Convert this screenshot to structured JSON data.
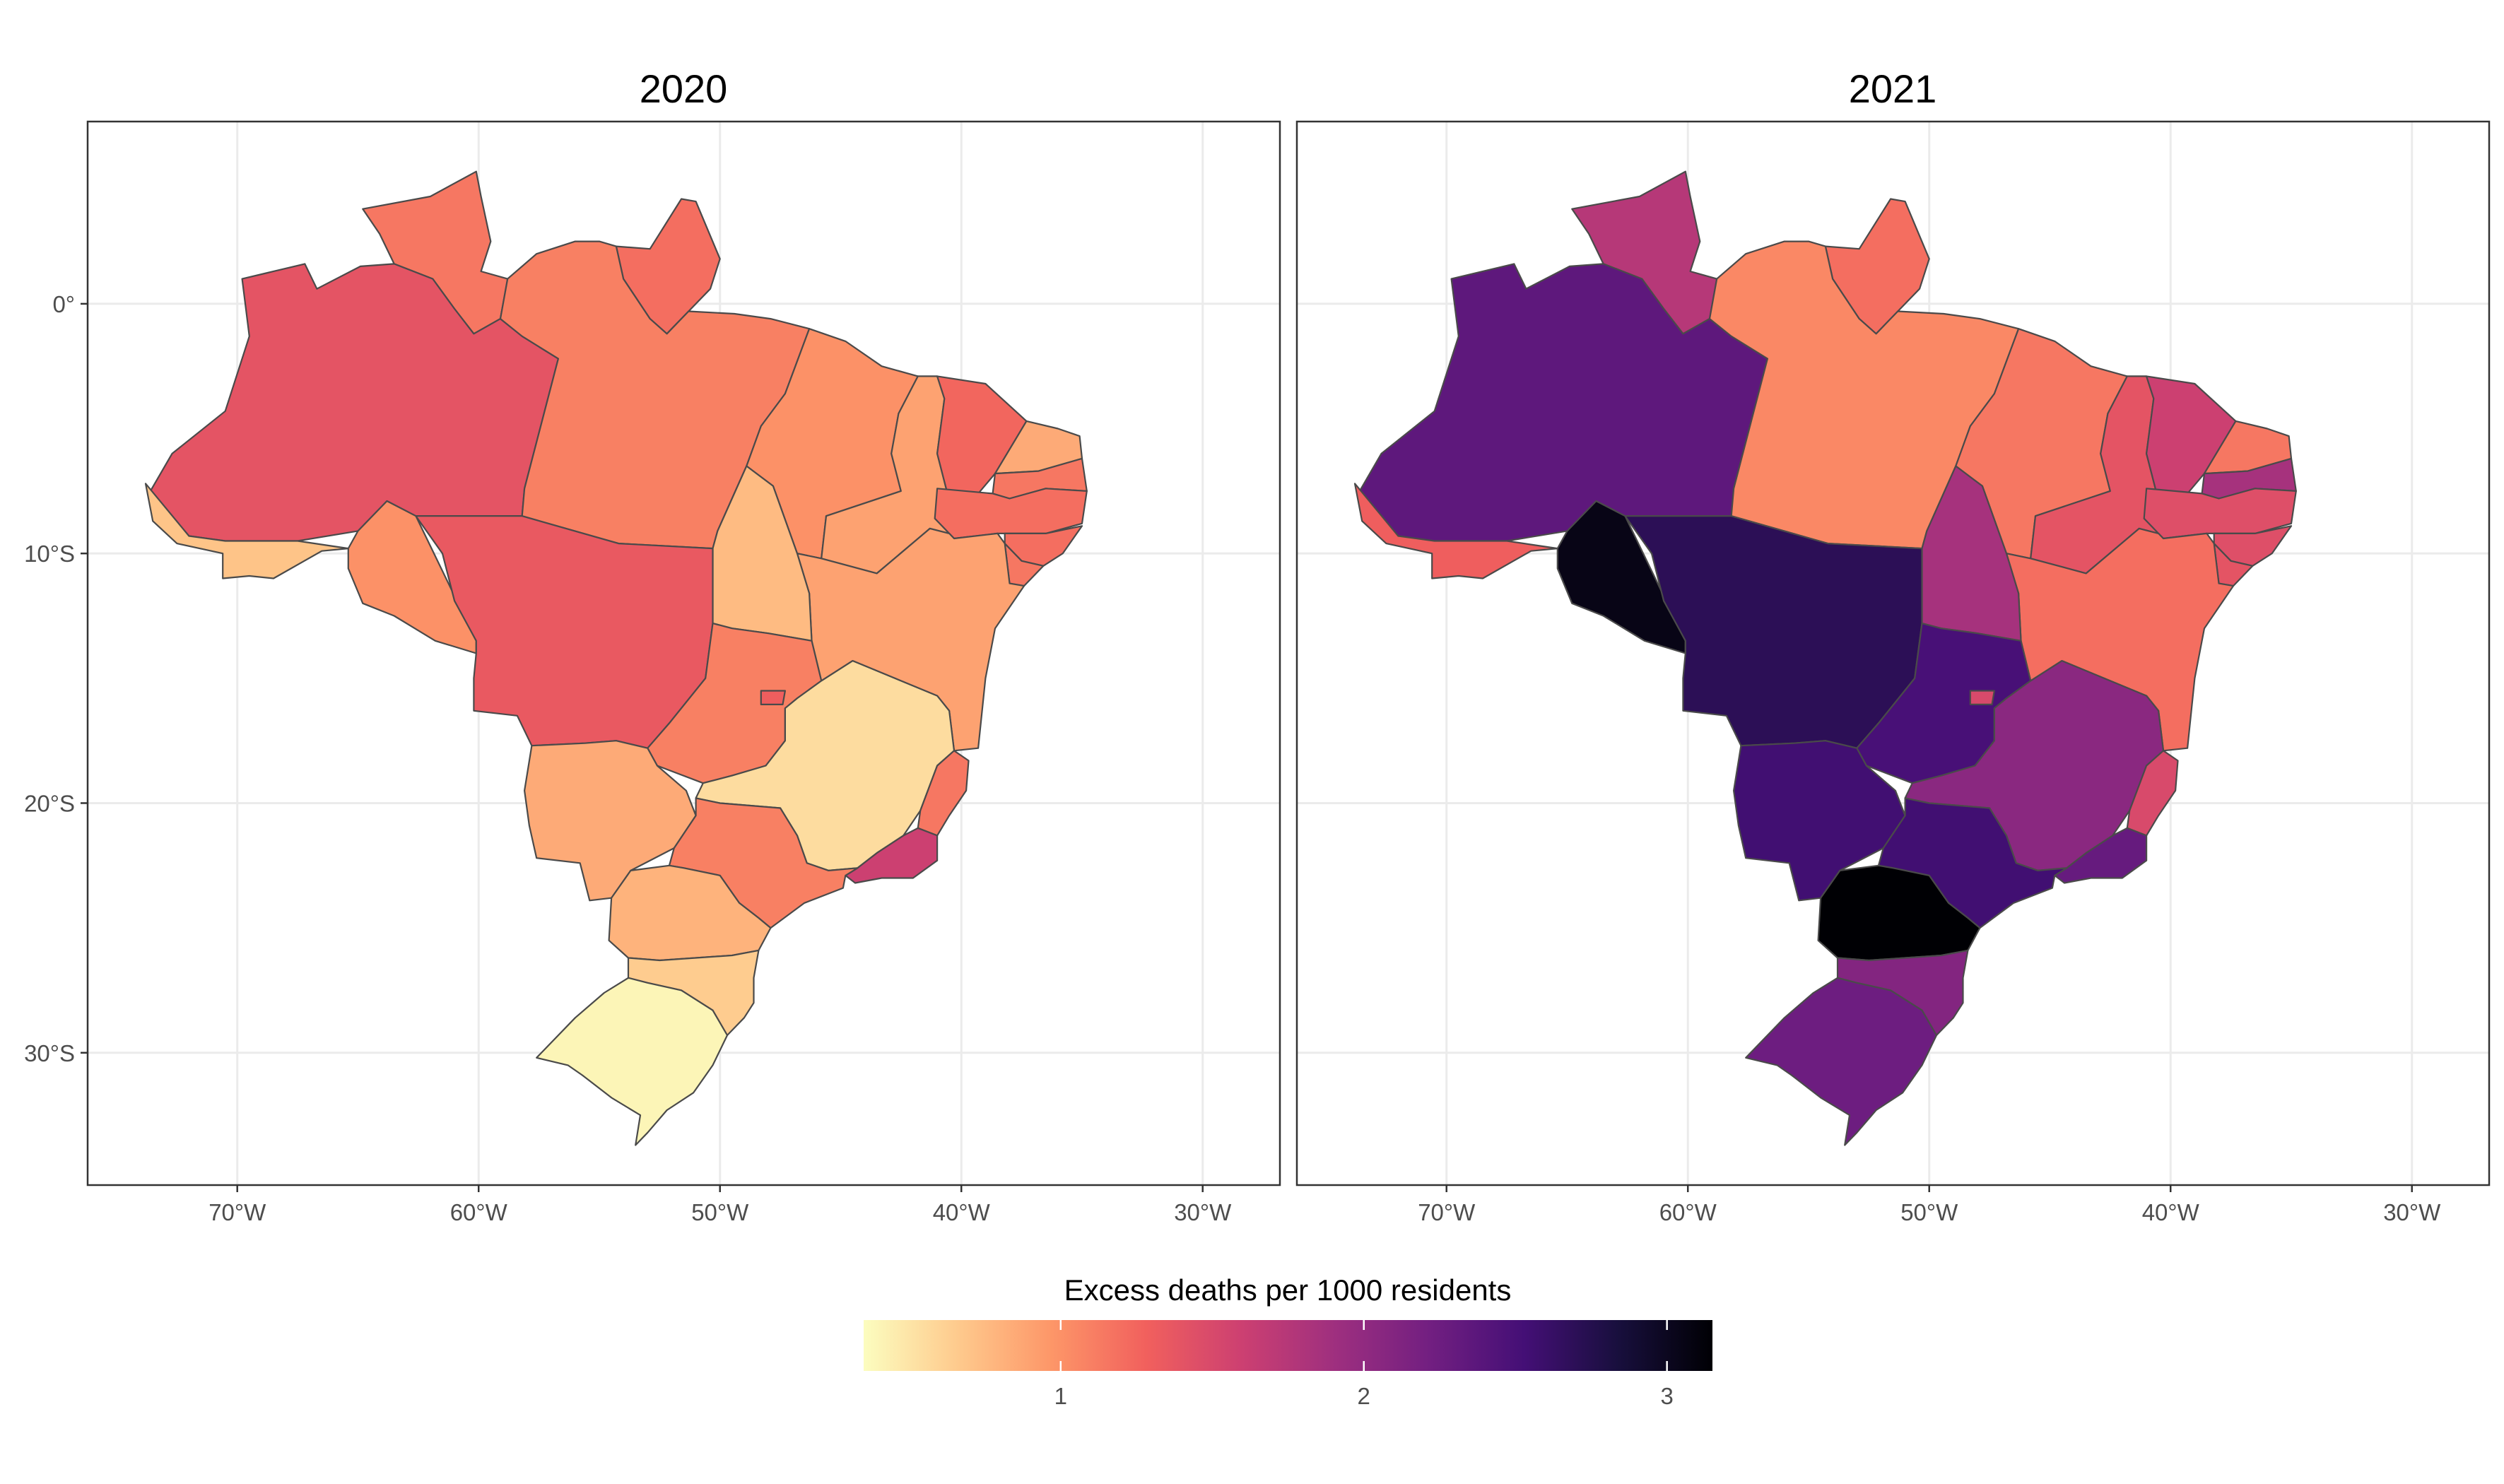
{
  "chart_data": {
    "type": "choropleth",
    "region": "Brazil states",
    "facets": [
      "2020",
      "2021"
    ],
    "x_ticks": [
      "70°W",
      "60°W",
      "50°W",
      "40°W",
      "30°W"
    ],
    "y_ticks": [
      "0°",
      "10°S",
      "20°S",
      "30°S"
    ],
    "xlim": [
      -76.2,
      -26.8
    ],
    "ylim": [
      -35.3,
      7.3
    ],
    "grid": true,
    "legend": {
      "title": "Excess deaths per 1000 residents",
      "ticks": [
        1,
        2,
        3
      ],
      "range": [
        0.35,
        3.15
      ],
      "palette": "magma (reversed)",
      "placement": "bottom"
    },
    "values_2020": {
      "AM": 1.4,
      "RR": 1.15,
      "AP": 1.2,
      "PA": 1.1,
      "AC": 0.7,
      "RO": 1.0,
      "MT": 1.35,
      "TO": 0.75,
      "MA": 1.0,
      "PI": 0.9,
      "CE": 1.25,
      "RN": 0.85,
      "PB": 1.15,
      "PE": 1.2,
      "AL": 1.2,
      "SE": 1.15,
      "BA": 0.9,
      "GO": 1.1,
      "DF": 1.3,
      "MS": 0.85,
      "MG": 0.55,
      "ES": 1.15,
      "RJ": 1.6,
      "SP": 1.1,
      "PR": 0.8,
      "SC": 0.65,
      "RS": 0.4
    },
    "values_2021": {
      "AM": 2.35,
      "RR": 1.75,
      "AP": 1.2,
      "PA": 1.05,
      "AC": 1.3,
      "RO": 3.05,
      "MT": 2.7,
      "TO": 1.85,
      "MA": 1.15,
      "PI": 1.4,
      "CE": 1.6,
      "RN": 1.15,
      "PB": 1.85,
      "PE": 1.45,
      "AL": 1.45,
      "SE": 1.4,
      "BA": 1.2,
      "GO": 2.5,
      "DF": 1.5,
      "MS": 2.55,
      "MG": 2.05,
      "ES": 1.5,
      "RJ": 2.3,
      "SP": 2.55,
      "PR": 3.15,
      "SC": 2.1,
      "RS": 2.25
    }
  },
  "colors": {
    "palette_stops": [
      "#fcfdbf",
      "#feca8d",
      "#fd9668",
      "#f1605d",
      "#cd4071",
      "#9e2f7f",
      "#721f81",
      "#440f76",
      "#180f3d",
      "#000004"
    ],
    "panel_border": "#333333",
    "grid": "#ebebeb",
    "state_border": "#4a4a4a"
  }
}
